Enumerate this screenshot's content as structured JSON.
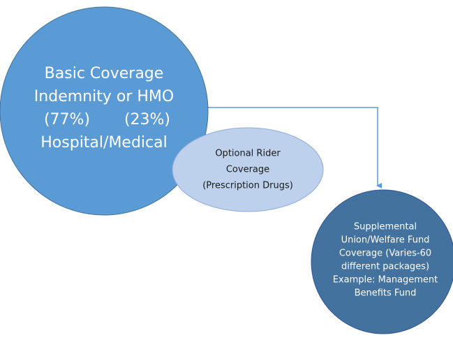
{
  "nodes": [
    {
      "lines": [
        "Basic Coverage",
        "Indemnity or HMO",
        "Hospital/Medical"
      ],
      "shares": [
        "(77%)",
        "(23%)"
      ]
    },
    {
      "lines": [
        "Optional Rider",
        "Coverage",
        "(Prescription Drugs)"
      ]
    },
    {
      "lines": [
        "Supplemental",
        "Union/Welfare Fund",
        "Coverage (Varies-60",
        "different packages)",
        "Example: Management",
        "Benefits Fund"
      ]
    }
  ]
}
